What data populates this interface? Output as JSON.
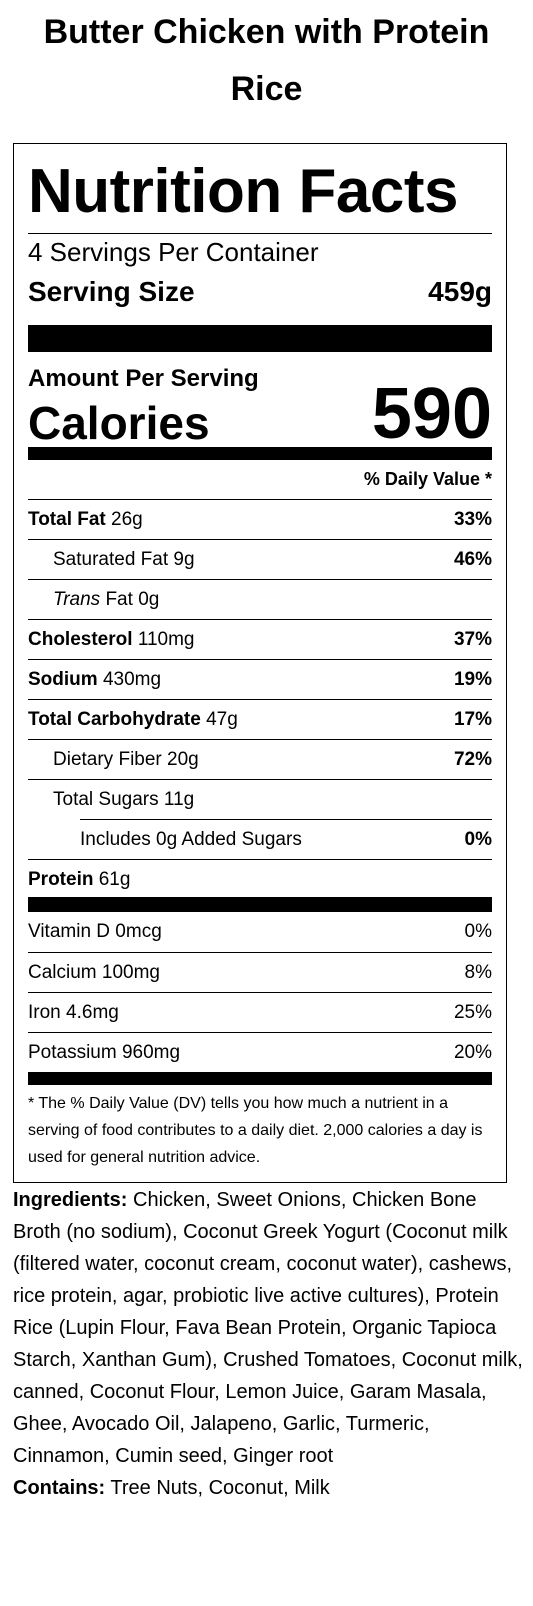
{
  "title": "Butter Chicken with Protein Rice",
  "label": {
    "heading": "Nutrition Facts",
    "servings": "4 Servings Per Container",
    "serving_size": {
      "label": "Serving Size",
      "value": "459g"
    },
    "amount_per_serving": "Amount Per Serving",
    "calories": {
      "label": "Calories",
      "value": "590"
    },
    "dv_header": "% Daily Value *",
    "nutrients": [
      {
        "name": "Total Fat",
        "amount": "26g",
        "dv": "33%"
      },
      {
        "name": "Saturated Fat",
        "amount": "9g",
        "dv": "46%"
      },
      {
        "name_italic": "Trans",
        "name": "Fat",
        "amount": "0g"
      },
      {
        "name": "Cholesterol",
        "amount": "110mg",
        "dv": "37%"
      },
      {
        "name": "Sodium",
        "amount": "430mg",
        "dv": "19%"
      },
      {
        "name": "Total Carbohydrate",
        "amount": "47g",
        "dv": "17%"
      },
      {
        "name": "Dietary Fiber",
        "amount": "20g",
        "dv": "72%"
      },
      {
        "name": "Total Sugars",
        "amount": "11g"
      },
      {
        "name": "Includes 0g Added Sugars",
        "dv": "0%"
      },
      {
        "name": "Protein",
        "amount": "61g"
      }
    ],
    "vitamins": [
      {
        "name": "Vitamin D",
        "amount": "0mcg",
        "dv": "0%"
      },
      {
        "name": "Calcium",
        "amount": "100mg",
        "dv": "8%"
      },
      {
        "name": "Iron",
        "amount": "4.6mg",
        "dv": "25%"
      },
      {
        "name": "Potassium",
        "amount": "960mg",
        "dv": "20%"
      }
    ],
    "footnote": "* The % Daily Value (DV) tells you how much a nutrient in a serving of food contributes to a daily diet. 2,000 calories a day is used for general nutrition advice."
  },
  "ingredients": {
    "label": "Ingredients:",
    "text": "Chicken, Sweet Onions, Chicken Bone Broth (no sodium), Coconut Greek Yogurt (Coconut milk (filtered water, coconut cream, coconut water), cashews, rice protein, agar, probiotic live active cultures), Protein Rice (Lupin Flour, Fava Bean Protein, Organic Tapioca Starch, Xanthan Gum), Crushed Tomatoes, Coconut milk, canned, Coconut Flour, Lemon Juice, Garam Masala, Ghee, Avocado Oil, Jalapeno, Garlic, Turmeric, Cinnamon, Cumin seed, Ginger root"
  },
  "contains": {
    "label": "Contains:",
    "text": "Tree Nuts, Coconut, Milk"
  }
}
